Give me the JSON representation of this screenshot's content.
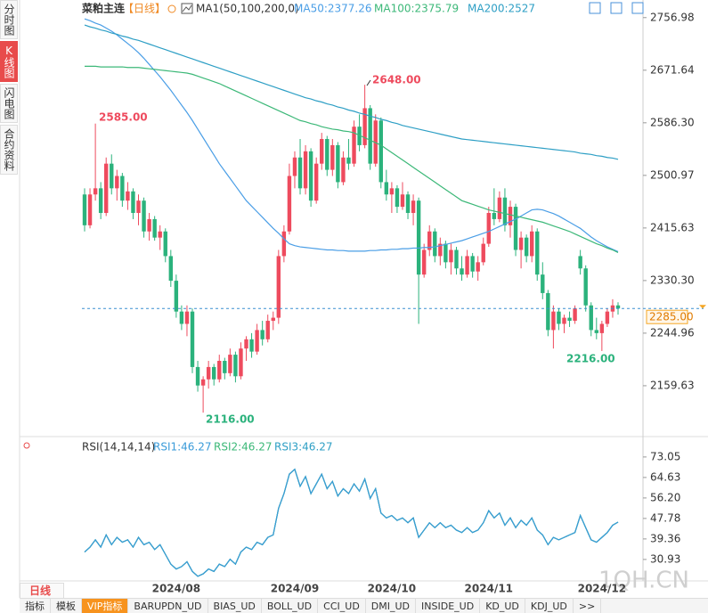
{
  "chart_data": [
    {
      "type": "candlestick",
      "title": "菜粕主连",
      "period": "【日线】",
      "indicator": "MA1(50,100,200,0)",
      "categories": [
        null,
        null,
        null,
        null,
        null,
        null,
        null,
        null,
        null,
        null,
        null,
        null,
        null,
        null,
        null,
        null,
        null,
        "2024/08",
        null,
        null,
        null,
        null,
        null,
        null,
        null,
        null,
        null,
        null,
        null,
        null,
        null,
        null,
        null,
        null,
        null,
        null,
        null,
        null,
        null,
        "2024/09",
        null,
        null,
        null,
        null,
        null,
        null,
        null,
        null,
        null,
        null,
        null,
        null,
        null,
        null,
        null,
        null,
        null,
        "2024/10",
        null,
        null,
        null,
        null,
        null,
        null,
        null,
        null,
        null,
        null,
        null,
        null,
        null,
        null,
        null,
        null,
        null,
        "2024/11",
        null,
        null,
        null,
        null,
        null,
        null,
        null,
        null,
        null,
        null,
        null,
        null,
        null,
        null,
        null,
        null,
        null,
        null,
        null,
        null,
        "2024/12",
        null,
        null,
        null
      ],
      "open": [
        2470,
        2420,
        2470,
        2480,
        2440,
        2520,
        2480,
        2500,
        2460,
        2475,
        2440,
        2460,
        2410,
        2430,
        2400,
        2410,
        2370,
        2330,
        2280,
        2260,
        2280,
        2190,
        2160,
        2170,
        2190,
        2170,
        2200,
        2180,
        2210,
        2175,
        2220,
        2235,
        2215,
        2250,
        2235,
        2265,
        2270,
        2370,
        2410,
        2500,
        2530,
        2480,
        2540,
        2460,
        2520,
        2560,
        2510,
        2550,
        2490,
        2530,
        2520,
        2580,
        2550,
        2610,
        2520,
        2590,
        2490,
        2470,
        2480,
        2450,
        2470,
        2440,
        2460,
        2340,
        2380,
        2410,
        2370,
        2390,
        2360,
        2380,
        2350,
        2340,
        2370,
        2345,
        2360,
        2390,
        2440,
        2430,
        2465,
        2420,
        2450,
        2380,
        2400,
        2370,
        2410,
        2340,
        2310,
        2250,
        2280,
        2260,
        2270,
        2265,
        2370,
        2350,
        2290,
        2250,
        2245,
        2260,
        2280,
        2290
      ],
      "high": [
        2480,
        2480,
        2585,
        2490,
        2530,
        2535,
        2510,
        2505,
        2490,
        2480,
        2470,
        2465,
        2440,
        2435,
        2420,
        2415,
        2380,
        2340,
        2290,
        2290,
        2285,
        2200,
        2175,
        2200,
        2195,
        2210,
        2205,
        2220,
        2215,
        2230,
        2240,
        2245,
        2260,
        2265,
        2275,
        2280,
        2380,
        2420,
        2520,
        2540,
        2560,
        2550,
        2545,
        2530,
        2570,
        2565,
        2560,
        2555,
        2540,
        2560,
        2590,
        2600,
        2648,
        2615,
        2600,
        2595,
        2510,
        2490,
        2485,
        2490,
        2475,
        2470,
        2465,
        2390,
        2420,
        2415,
        2400,
        2395,
        2390,
        2385,
        2370,
        2380,
        2375,
        2370,
        2400,
        2450,
        2480,
        2475,
        2480,
        2460,
        2455,
        2410,
        2405,
        2420,
        2415,
        2360,
        2315,
        2290,
        2285,
        2275,
        2280,
        2290,
        2380,
        2355,
        2295,
        2270,
        2265,
        2285,
        2300,
        2295
      ],
      "low": [
        2410,
        2415,
        2460,
        2430,
        2435,
        2470,
        2460,
        2450,
        2445,
        2430,
        2420,
        2400,
        2395,
        2395,
        2380,
        2360,
        2320,
        2270,
        2250,
        2240,
        2180,
        2150,
        2116,
        2155,
        2160,
        2165,
        2170,
        2175,
        2165,
        2170,
        2200,
        2205,
        2210,
        2225,
        2230,
        2250,
        2260,
        2360,
        2405,
        2480,
        2470,
        2470,
        2450,
        2455,
        2510,
        2500,
        2500,
        2480,
        2485,
        2510,
        2515,
        2540,
        2545,
        2510,
        2515,
        2480,
        2460,
        2440,
        2440,
        2445,
        2430,
        2420,
        2260,
        2335,
        2370,
        2360,
        2355,
        2350,
        2340,
        2340,
        2330,
        2335,
        2335,
        2330,
        2355,
        2385,
        2420,
        2425,
        2410,
        2400,
        2370,
        2350,
        2360,
        2360,
        2330,
        2300,
        2240,
        2220,
        2250,
        2245,
        2255,
        2260,
        2340,
        2280,
        2240,
        2235,
        2216,
        2255,
        2270,
        2275
      ],
      "close": [
        2420,
        2470,
        2480,
        2440,
        2520,
        2480,
        2500,
        2460,
        2475,
        2440,
        2460,
        2410,
        2430,
        2400,
        2410,
        2370,
        2330,
        2280,
        2260,
        2280,
        2190,
        2160,
        2170,
        2190,
        2170,
        2200,
        2180,
        2210,
        2175,
        2220,
        2235,
        2215,
        2250,
        2235,
        2265,
        2270,
        2370,
        2410,
        2500,
        2530,
        2480,
        2540,
        2460,
        2520,
        2560,
        2510,
        2550,
        2490,
        2530,
        2520,
        2580,
        2550,
        2610,
        2520,
        2590,
        2490,
        2470,
        2480,
        2450,
        2470,
        2440,
        2460,
        2340,
        2380,
        2410,
        2370,
        2390,
        2360,
        2380,
        2350,
        2340,
        2370,
        2345,
        2360,
        2390,
        2440,
        2430,
        2465,
        2420,
        2450,
        2380,
        2400,
        2370,
        2410,
        2340,
        2310,
        2250,
        2280,
        2260,
        2270,
        2265,
        2285,
        2350,
        2290,
        2250,
        2245,
        2260,
        2280,
        2290,
        2285
      ],
      "up_color": "#ee4b5e",
      "down_color": "#2bb27c",
      "series": [
        {
          "name": "MA50:2377.26",
          "color": "#4a9ee6",
          "values": [
            2755,
            2752,
            2748,
            2745,
            2740,
            2735,
            2729,
            2722,
            2715,
            2708,
            2700,
            2691,
            2681,
            2671,
            2661,
            2650,
            2639,
            2627,
            2615,
            2603,
            2590,
            2576,
            2562,
            2548,
            2534,
            2520,
            2508,
            2496,
            2484,
            2472,
            2460,
            2451,
            2442,
            2433,
            2424,
            2415,
            2407,
            2398,
            2390,
            2387,
            2385,
            2384,
            2383,
            2382,
            2381,
            2380,
            2380,
            2379,
            2379,
            2378,
            2378,
            2378,
            2378,
            2379,
            2379,
            2380,
            2380,
            2381,
            2381,
            2382,
            2382,
            2383,
            2383,
            2384,
            2384,
            2385,
            2387,
            2389,
            2391,
            2393,
            2395,
            2398,
            2401,
            2404,
            2407,
            2410,
            2414,
            2418,
            2422,
            2426,
            2430,
            2435,
            2440,
            2445,
            2446,
            2445,
            2442,
            2439,
            2435,
            2430,
            2425,
            2420,
            2415,
            2408,
            2401,
            2395,
            2390,
            2385,
            2381,
            2377.26
          ]
        },
        {
          "name": "MA100:2375.79",
          "color": "#3cb878",
          "values": [
            2678,
            2678,
            2678,
            2677,
            2677,
            2677,
            2677,
            2677,
            2676,
            2676,
            2676,
            2675,
            2674,
            2673,
            2672,
            2671,
            2670,
            2669,
            2668,
            2667,
            2665,
            2662,
            2659,
            2656,
            2653,
            2650,
            2646,
            2642,
            2638,
            2634,
            2630,
            2626,
            2622,
            2618,
            2614,
            2610,
            2606,
            2602,
            2598,
            2594,
            2590,
            2588,
            2585,
            2583,
            2580,
            2578,
            2576,
            2575,
            2573,
            2572,
            2570,
            2566,
            2562,
            2558,
            2554,
            2550,
            2544,
            2538,
            2532,
            2526,
            2520,
            2514,
            2508,
            2502,
            2496,
            2490,
            2484,
            2478,
            2472,
            2466,
            2460,
            2457,
            2454,
            2451,
            2448,
            2445,
            2443,
            2441,
            2439,
            2437,
            2435,
            2433,
            2431,
            2429,
            2427,
            2425,
            2422,
            2419,
            2416,
            2413,
            2410,
            2406,
            2402,
            2398,
            2394,
            2390,
            2387,
            2383,
            2380,
            2375.79
          ]
        },
        {
          "name": "MA200:2527",
          "color": "#2e9fc5",
          "values": [
            2745,
            2742,
            2740,
            2737,
            2735,
            2732,
            2730,
            2727,
            2725,
            2722,
            2720,
            2717,
            2714,
            2711,
            2708,
            2705,
            2702,
            2699,
            2696,
            2693,
            2690,
            2687,
            2684,
            2681,
            2678,
            2675,
            2672,
            2669,
            2666,
            2663,
            2660,
            2657,
            2654,
            2651,
            2648,
            2645,
            2642,
            2639,
            2636,
            2633,
            2630,
            2627,
            2625,
            2622,
            2620,
            2617,
            2615,
            2612,
            2610,
            2607,
            2605,
            2602,
            2600,
            2597,
            2595,
            2592,
            2590,
            2587,
            2585,
            2582,
            2580,
            2578,
            2576,
            2574,
            2572,
            2570,
            2568,
            2566,
            2564,
            2562,
            2560,
            2559,
            2558,
            2557,
            2556,
            2555,
            2554,
            2553,
            2552,
            2551,
            2550,
            2549,
            2548,
            2547,
            2546,
            2545,
            2544,
            2543,
            2542,
            2541,
            2540,
            2539,
            2537,
            2536,
            2535,
            2533,
            2532,
            2530,
            2529,
            2527
          ]
        }
      ],
      "ylim": [
        2080,
        2774
      ],
      "yticks": [
        2756.98,
        2671.64,
        {
          "value": 2586.3,
          "label": "2586.30"
        },
        2500.97,
        2415.63,
        {
          "value": 2330.3,
          "label": "2330.30"
        },
        2244.96,
        2159.63
      ],
      "annotations": [
        "2585.00",
        "2648.00",
        "2116.00",
        "2216.00"
      ],
      "last_price": {
        "value": 2285,
        "label": "2285.00"
      }
    },
    {
      "type": "line",
      "title": "RSI(14,14,14)",
      "series": [
        {
          "name": "RSI1:46.27",
          "color": "#3a9bd9",
          "values": [
            34,
            36,
            39,
            36,
            41,
            37,
            40,
            38,
            39,
            36,
            40,
            37,
            38,
            35,
            37,
            33,
            29,
            27,
            28,
            30,
            26,
            24,
            25,
            27,
            26,
            29,
            28,
            31,
            29,
            34,
            36,
            35,
            38,
            37,
            40,
            41,
            52,
            58,
            66,
            68,
            61,
            65,
            58,
            62,
            66,
            60,
            63,
            57,
            60,
            58,
            62,
            59,
            64,
            56,
            60,
            50,
            48,
            49,
            47,
            48,
            46,
            48,
            40,
            43,
            46,
            44,
            46,
            44,
            45,
            43,
            42,
            44,
            42,
            43,
            46,
            51,
            48,
            50,
            45,
            48,
            44,
            47,
            45,
            48,
            43,
            41,
            37,
            40,
            39,
            40,
            41,
            42,
            49,
            44,
            39,
            38,
            40,
            42,
            45,
            46.27
          ]
        },
        {
          "name": "RSI2:46.27",
          "color": "#3cb878",
          "values": [
            34,
            36,
            39,
            36,
            41,
            37,
            40,
            38,
            39,
            36,
            40,
            37,
            38,
            35,
            37,
            33,
            29,
            27,
            28,
            30,
            26,
            24,
            25,
            27,
            26,
            29,
            28,
            31,
            29,
            34,
            36,
            35,
            38,
            37,
            40,
            41,
            52,
            58,
            66,
            68,
            61,
            65,
            58,
            62,
            66,
            60,
            63,
            57,
            60,
            58,
            62,
            59,
            64,
            56,
            60,
            50,
            48,
            49,
            47,
            48,
            46,
            48,
            40,
            43,
            46,
            44,
            46,
            44,
            45,
            43,
            42,
            44,
            42,
            43,
            46,
            51,
            48,
            50,
            45,
            48,
            44,
            47,
            45,
            48,
            43,
            41,
            37,
            40,
            39,
            40,
            41,
            42,
            49,
            44,
            39,
            38,
            40,
            42,
            45,
            46.27
          ]
        },
        {
          "name": "RSI3:46.27",
          "color": "#2e9fc5",
          "values": [
            34,
            36,
            39,
            36,
            41,
            37,
            40,
            38,
            39,
            36,
            40,
            37,
            38,
            35,
            37,
            33,
            29,
            27,
            28,
            30,
            26,
            24,
            25,
            27,
            26,
            29,
            28,
            31,
            29,
            34,
            36,
            35,
            38,
            37,
            40,
            41,
            52,
            58,
            66,
            68,
            61,
            65,
            58,
            62,
            66,
            60,
            63,
            57,
            60,
            58,
            62,
            59,
            64,
            56,
            60,
            50,
            48,
            49,
            47,
            48,
            46,
            48,
            40,
            43,
            46,
            44,
            46,
            44,
            45,
            43,
            42,
            44,
            42,
            43,
            46,
            51,
            48,
            50,
            45,
            48,
            44,
            47,
            45,
            48,
            43,
            41,
            37,
            40,
            39,
            40,
            41,
            42,
            49,
            44,
            39,
            38,
            40,
            42,
            45,
            46.27
          ]
        }
      ],
      "ylim": [
        22.1,
        79.6
      ],
      "yticks": [
        73.05,
        64.63,
        {
          "value": 56.2,
          "label": "56.20"
        },
        47.78,
        39.36,
        30.93
      ]
    }
  ],
  "ui": {
    "sidebar_tabs": [
      "分时图",
      "K线图",
      "闪电图",
      "合约资料"
    ],
    "active_tab": "K线图",
    "period_tab": "日线",
    "indicator_tabs": [
      "指标",
      "模板",
      "VIP指标",
      "BARUPDN_UD",
      "BIAS_UD",
      "BOLL_UD",
      "CCI_UD",
      "DMI_UD",
      "INSIDE_UD",
      "KD_UD",
      "KDJ_UD",
      ">>"
    ],
    "watermark": "1QH.CN"
  }
}
